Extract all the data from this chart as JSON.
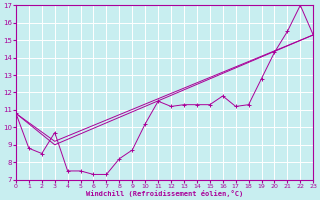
{
  "xlabel": "Windchill (Refroidissement éolien,°C)",
  "bg_color": "#c8eef0",
  "grid_color": "#ffffff",
  "line_color": "#aa0099",
  "x_min": 0,
  "x_max": 23,
  "y_min": 7,
  "y_max": 17,
  "line1_x": [
    0,
    1,
    2,
    3,
    4,
    5,
    6,
    7,
    8,
    9,
    10,
    11,
    12,
    13,
    14,
    15,
    16,
    17,
    18,
    19,
    20,
    21,
    22,
    23
  ],
  "line1_y": [
    10.8,
    8.8,
    8.5,
    9.7,
    7.5,
    7.5,
    7.3,
    7.3,
    8.2,
    8.7,
    10.2,
    11.5,
    11.2,
    11.3,
    11.3,
    11.3,
    11.8,
    11.2,
    11.3,
    12.8,
    14.3,
    15.5,
    17.0,
    15.3
  ],
  "line2_x": [
    0,
    3,
    23
  ],
  "line2_y": [
    10.8,
    9.0,
    15.3
  ],
  "line3_x": [
    0,
    3,
    23
  ],
  "line3_y": [
    10.8,
    9.2,
    15.3
  ],
  "xticks": [
    0,
    1,
    2,
    3,
    4,
    5,
    6,
    7,
    8,
    9,
    10,
    11,
    12,
    13,
    14,
    15,
    16,
    17,
    18,
    19,
    20,
    21,
    22,
    23
  ],
  "yticks": [
    7,
    8,
    9,
    10,
    11,
    12,
    13,
    14,
    15,
    16,
    17
  ],
  "figwidth": 3.2,
  "figheight": 2.0,
  "dpi": 100
}
